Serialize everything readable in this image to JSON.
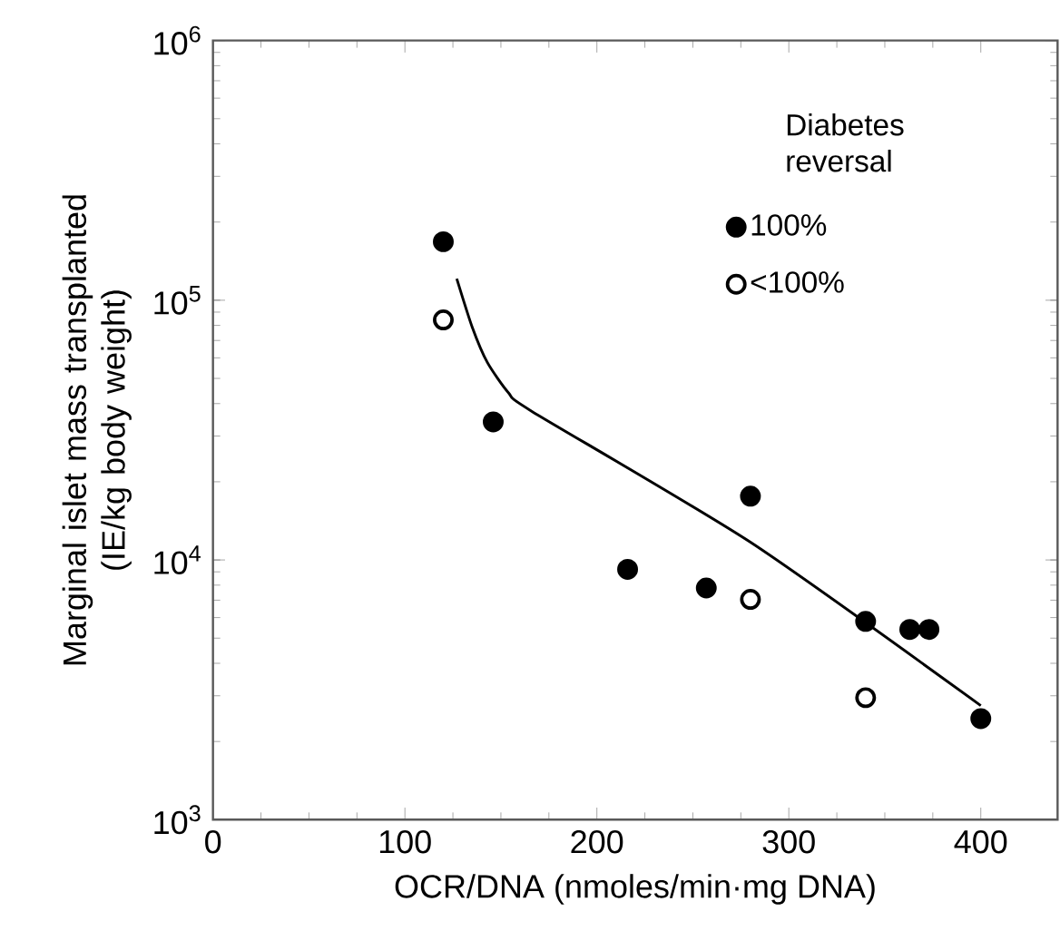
{
  "chart_data": {
    "type": "scatter",
    "xlabel": "OCR/DNA (nmoles/min·mg DNA)",
    "ylabel": "Marginal islet mass transplanted (IE/kg body weight)",
    "legend_title": "Diabetes reversal",
    "legend": "top right",
    "log": "y",
    "xlim": [
      0,
      440
    ],
    "xticks": [
      0,
      100,
      200,
      300,
      400
    ],
    "ylim": [
      1000,
      1000000
    ],
    "yticks": [
      {
        "value": 1000,
        "label": "10$^{3}$"
      },
      {
        "value": 10000,
        "label": "10$^{4}$"
      },
      {
        "value": 100000,
        "label": "10$^{5}$"
      },
      {
        "value": 1000000,
        "label": "10$^{6}$"
      }
    ],
    "series": [
      {
        "name": "100%",
        "color": "#000000",
        "marker": "circle",
        "x": [
          120,
          146,
          216,
          257,
          280,
          340,
          363,
          373,
          400
        ],
        "values": [
          168000,
          34000,
          9200,
          7800,
          17600,
          5800,
          5400,
          5400,
          2450
        ]
      },
      {
        "name": "<100%",
        "color": "#ffffff",
        "marker": "circle",
        "x": [
          120,
          280,
          340
        ],
        "values": [
          84000,
          7050,
          2950
        ]
      },
      {
        "type": "line",
        "color": "#000000",
        "marker": "none",
        "x": [
          127,
          135,
          143,
          154,
          166,
          280,
          400
        ],
        "values": [
          121000,
          79000,
          57500,
          44000,
          37400,
          11700,
          2750
        ]
      }
    ]
  }
}
